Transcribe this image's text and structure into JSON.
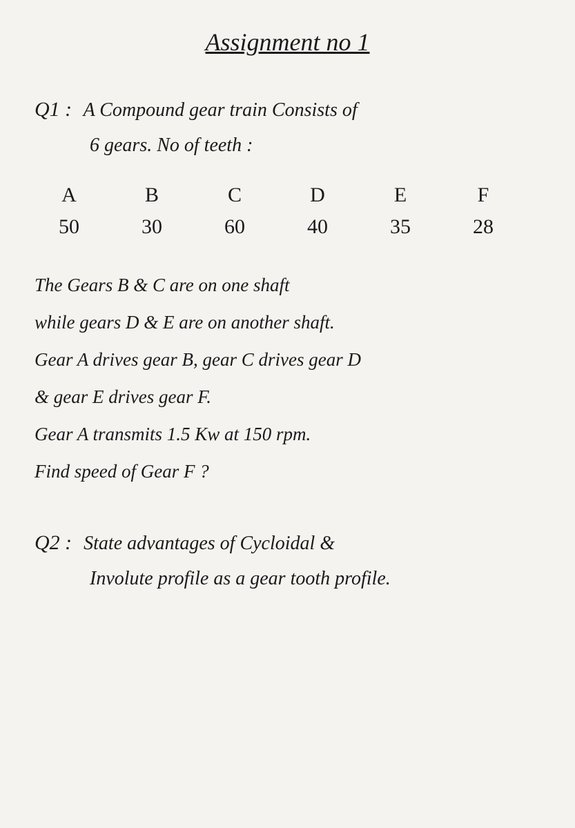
{
  "title": "Assignment no 1",
  "q1": {
    "label": "Q1 :",
    "line1": "A Compound gear train Consists of",
    "line2": "6 gears.  No of teeth :",
    "headers": [
      "A",
      "B",
      "C",
      "D",
      "E",
      "F"
    ],
    "values": [
      "50",
      "30",
      "60",
      "40",
      "35",
      "28"
    ],
    "body1": "The Gears B & C are on one shaft",
    "body2": "while gears D & E are on another shaft.",
    "body3": "Gear A drives gear B, gear C drives gear D",
    "body4": "& gear E drives gear F.",
    "body5": "Gear A transmits 1.5 Kw at 150 rpm.",
    "body6": "Find speed of Gear F ?"
  },
  "q2": {
    "label": "Q2 :",
    "line1": "State advantages of Cycloidal &",
    "line2": "Involute profile as a gear tooth profile."
  },
  "colors": {
    "background": "#f5f3f0",
    "text": "#1a1a1a"
  }
}
